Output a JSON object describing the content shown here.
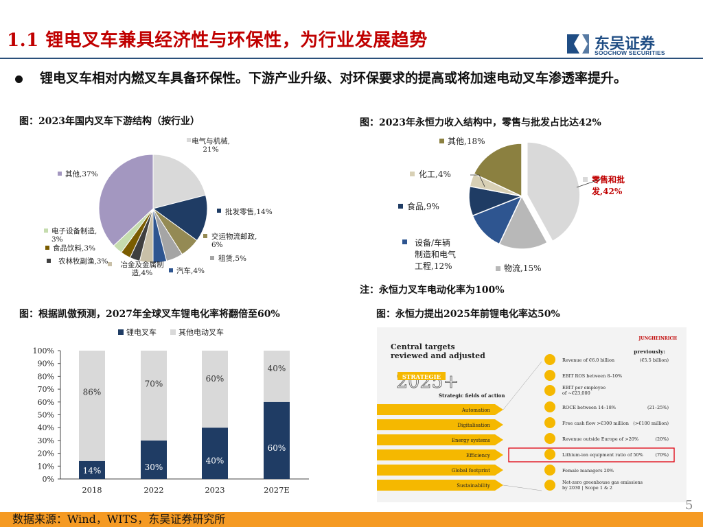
{
  "header": {
    "title": "1.1 锂电叉车兼具经济性与环保性，为行业发展趋势",
    "logo_cn": "东吴证券",
    "logo_en": "SOOCHOW SECURITIES"
  },
  "bullet": "锂电叉车相对内燃叉车具备环保性。下游产业升级、对环保要求的提高或将加速电动叉车渗透率提升。",
  "captions": {
    "pie1": "图：2023年国内叉车下游结构（按行业）",
    "pie2": "图：2023年永恒力收入结构中，零售与批发占比达42%",
    "note": "注：永恒力叉车电动化率为100%",
    "bar": "图：根据凯傲预测，2027年全球叉车锂电化率将翻倍至60%",
    "jh": "图：永恒力提出2025年前锂电化率达50%"
  },
  "chart_data": [
    {
      "type": "pie",
      "labels": [
        "电气与机械",
        "批发零售",
        "交运物流邮政",
        "租赁",
        "汽车",
        "冶金及金属制造",
        "农林牧副渔",
        "食品饮料",
        "电子设备制造",
        "其他"
      ],
      "values": [
        21,
        14,
        6,
        5,
        4,
        4,
        3,
        3,
        3,
        37
      ],
      "display": [
        "电气与机械,\n21%",
        "批发零售,14%",
        "交运物流邮政,\n6%",
        "租赁,5%",
        "汽车,4%",
        "冶金及金属制\n造,4%",
        "农林牧副渔,3%",
        "食品饮料,3%",
        "电子设备制造,\n3%",
        "其他,37%"
      ],
      "colors": [
        "#d9d9d9",
        "#1f3c64",
        "#948a54",
        "#a5a5a5",
        "#2e5590",
        "#c9c0a8",
        "#3f3f3f",
        "#7a5c00",
        "#c5dcae",
        "#a397c0"
      ]
    },
    {
      "type": "pie",
      "labels": [
        "零售和批发",
        "物流",
        "设备/车辆制造和电气工程",
        "食品",
        "化工",
        "其他"
      ],
      "values": [
        42,
        15,
        12,
        9,
        4,
        18
      ],
      "display": [
        "零售和批\n发,42%",
        "物流,15%",
        "设备/车辆\n制造和电气\n工程,12%",
        "食品,9%",
        "化工,4%",
        "其他,18%"
      ],
      "colors": [
        "#d9d9d9",
        "#b8b8b8",
        "#2e5590",
        "#1f3c64",
        "#d8d0b5",
        "#8b8040"
      ],
      "highlight": "#c00000"
    },
    {
      "type": "bar",
      "stacked": true,
      "categories": [
        "2018",
        "2022",
        "2023",
        "2027E"
      ],
      "series": [
        {
          "name": "锂电叉车",
          "values": [
            14,
            30,
            40,
            60
          ],
          "color": "#1f3c64"
        },
        {
          "name": "其他电动叉车",
          "values": [
            86,
            70,
            60,
            40
          ],
          "color": "#d9d9d9"
        }
      ],
      "yticks": [
        "0%",
        "10%",
        "20%",
        "30%",
        "40%",
        "50%",
        "60%",
        "70%",
        "80%",
        "90%",
        "100%"
      ],
      "ylim": [
        0,
        100
      ]
    }
  ],
  "jungheinrich": {
    "heading1": "Central targets",
    "heading2": "reviewed and adjusted",
    "brand": "JUNGHEINRICH",
    "previously": "previously:",
    "strategy_year": "2025",
    "strategy_word": "STRATEGIE",
    "fields_title": "Strategic fields of action",
    "fields": [
      "Automation",
      "Digitalisation",
      "Energy systems",
      "Efficiency",
      "Global footprint",
      "Sustainability"
    ],
    "targets": [
      {
        "text": "Revenue of €6.0 billion",
        "prev": "(€5.5 billion)"
      },
      {
        "text": "EBIT ROS between 8–10%",
        "prev": ""
      },
      {
        "text": "EBIT per employee\nof ~€23,000",
        "prev": ""
      },
      {
        "text": "ROCE between 14–18%",
        "prev": "(21–25%)"
      },
      {
        "text": "Free cash flow >€300 million",
        "prev": "(>€100 million)"
      },
      {
        "text": "Revenue outside Europe of >20%",
        "prev": "(20%)"
      },
      {
        "text": "Lithium-ion equipment ratio of 50%",
        "prev": "(70%)"
      },
      {
        "text": "Female managers 20%",
        "prev": ""
      },
      {
        "text": "Net-zero greenhouse gas emissions\nby 2030 | Scope 1 & 2",
        "prev": ""
      }
    ]
  },
  "footer": {
    "source": "数据来源：Wind，WITS，东吴证券研究所",
    "page": "5"
  }
}
